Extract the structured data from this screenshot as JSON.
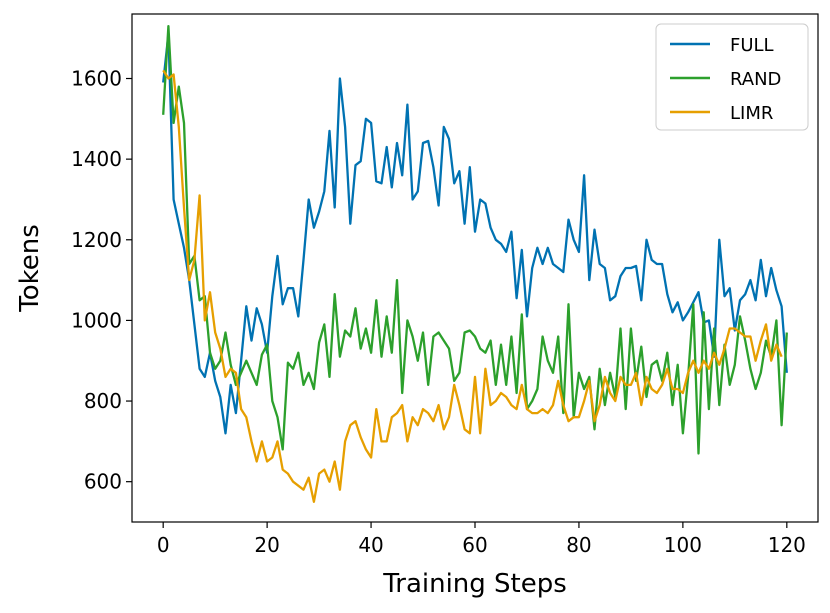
{
  "chart_data": {
    "type": "line",
    "title": "",
    "xlabel": "Training Steps",
    "ylabel": "Tokens",
    "xlim": [
      -6,
      126
    ],
    "ylim": [
      500,
      1760
    ],
    "xticks": [
      0,
      20,
      40,
      60,
      80,
      100,
      120
    ],
    "yticks": [
      600,
      800,
      1000,
      1200,
      1400,
      1600
    ],
    "grid": false,
    "legend_position": "top-right",
    "series": [
      {
        "name": "FULL",
        "color": "#0072B2",
        "values": [
          1590,
          1710,
          1300,
          1240,
          1180,
          1100,
          990,
          880,
          860,
          920,
          850,
          810,
          720,
          840,
          770,
          900,
          1035,
          950,
          1030,
          990,
          920,
          1060,
          1160,
          1040,
          1080,
          1080,
          1010,
          1150,
          1300,
          1230,
          1270,
          1320,
          1470,
          1280,
          1600,
          1480,
          1240,
          1385,
          1395,
          1500,
          1490,
          1345,
          1340,
          1430,
          1330,
          1440,
          1360,
          1535,
          1300,
          1320,
          1440,
          1445,
          1380,
          1285,
          1480,
          1450,
          1340,
          1370,
          1240,
          1380,
          1220,
          1300,
          1290,
          1230,
          1200,
          1190,
          1170,
          1220,
          1055,
          1175,
          1010,
          1130,
          1180,
          1140,
          1180,
          1140,
          1130,
          1120,
          1250,
          1200,
          1170,
          1360,
          1100,
          1225,
          1140,
          1130,
          1050,
          1060,
          1110,
          1130,
          1130,
          1135,
          1050,
          1200,
          1150,
          1140,
          1140,
          1065,
          1020,
          1045,
          1000,
          1020,
          1045,
          1070,
          995,
          1000,
          910,
          1200,
          1060,
          1080,
          975,
          1050,
          1065,
          1100,
          1050,
          1150,
          1060,
          1130,
          1075,
          1035,
          870
        ]
      },
      {
        "name": "RAND",
        "color": "#2CA02C",
        "values": [
          1510,
          1730,
          1490,
          1580,
          1490,
          1140,
          1160,
          1050,
          1060,
          920,
          880,
          900,
          970,
          890,
          840,
          870,
          900,
          870,
          840,
          915,
          940,
          800,
          760,
          680,
          895,
          880,
          920,
          840,
          870,
          830,
          945,
          990,
          860,
          1065,
          910,
          975,
          960,
          1030,
          930,
          980,
          920,
          1050,
          910,
          1010,
          920,
          1100,
          820,
          1000,
          960,
          900,
          970,
          840,
          960,
          970,
          950,
          930,
          850,
          870,
          970,
          975,
          960,
          930,
          920,
          950,
          840,
          940,
          840,
          960,
          820,
          1015,
          780,
          800,
          830,
          960,
          900,
          870,
          960,
          770,
          1040,
          760,
          870,
          830,
          860,
          730,
          880,
          790,
          870,
          810,
          980,
          780,
          980,
          850,
          935,
          810,
          890,
          900,
          850,
          920,
          790,
          890,
          720,
          860,
          1040,
          670,
          1020,
          780,
          980,
          790,
          940,
          840,
          890,
          1010,
          950,
          880,
          830,
          870,
          950,
          910,
          1000,
          740,
          970
        ]
      },
      {
        "name": "LIMR",
        "color": "#E69F00",
        "values": [
          1620,
          1600,
          1610,
          1480,
          1280,
          1100,
          1150,
          1310,
          1000,
          1070,
          970,
          930,
          860,
          880,
          870,
          780,
          760,
          700,
          650,
          700,
          650,
          660,
          700,
          630,
          620,
          600,
          590,
          580,
          610,
          550,
          620,
          630,
          600,
          650,
          580,
          700,
          740,
          750,
          710,
          680,
          660,
          780,
          700,
          700,
          760,
          770,
          790,
          700,
          760,
          740,
          780,
          770,
          750,
          790,
          730,
          760,
          840,
          790,
          730,
          720,
          860,
          720,
          880,
          790,
          800,
          820,
          810,
          790,
          780,
          840,
          780,
          770,
          770,
          780,
          770,
          790,
          850,
          790,
          750,
          760,
          760,
          800,
          850,
          750,
          790,
          860,
          820,
          800,
          860,
          840,
          840,
          870,
          790,
          860,
          830,
          820,
          840,
          880,
          830,
          830,
          820,
          870,
          900,
          870,
          900,
          880,
          920,
          890,
          930,
          980,
          980,
          970,
          960,
          960,
          900,
          950,
          990,
          900,
          940,
          910
        ]
      }
    ]
  }
}
